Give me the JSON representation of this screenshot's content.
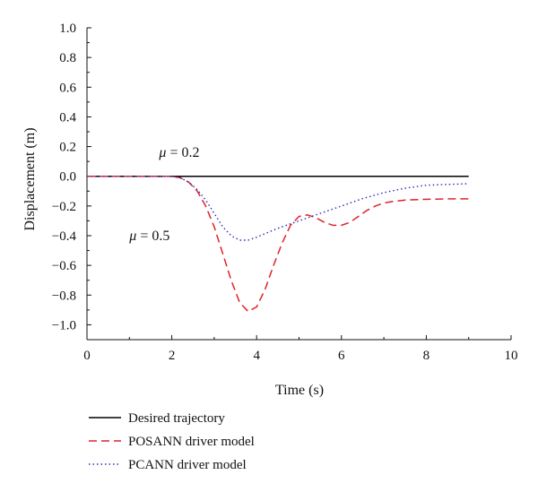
{
  "chart_data": {
    "type": "line",
    "title": "",
    "xlabel": "Time (s)",
    "ylabel": "Displacement (m)",
    "xlim": [
      0,
      10
    ],
    "ylim": [
      -1.1,
      1.0
    ],
    "xticks": [
      "0",
      "2",
      "4",
      "6",
      "8",
      "10"
    ],
    "yticks": [
      "1.0",
      "0.8",
      "0.6",
      "0.4",
      "0.2",
      "0.0",
      "−0.2",
      "−0.4",
      "−0.6",
      "−0.8",
      "−1.0"
    ],
    "grid": false,
    "legend_position": "bottom-left",
    "annotations": [
      {
        "text": "μ = 0.2",
        "x": 1.7,
        "y": 0.16
      },
      {
        "text": "μ = 0.5",
        "x": 1.0,
        "y": -0.4
      }
    ],
    "series": [
      {
        "name": "Desired trajectory",
        "color": "#000000",
        "style": "solid",
        "x": [
          0,
          9
        ],
        "y": [
          0,
          0
        ]
      },
      {
        "name": "POSANN driver model",
        "color": "#e0222a",
        "style": "dashed",
        "x": [
          0,
          2.0,
          2.2,
          2.4,
          2.6,
          2.8,
          3.0,
          3.2,
          3.4,
          3.6,
          3.8,
          4.0,
          4.2,
          4.4,
          4.6,
          4.8,
          5.0,
          5.2,
          5.4,
          5.6,
          5.8,
          6.0,
          6.2,
          6.4,
          6.6,
          6.8,
          7.0,
          7.2,
          7.5,
          8.0,
          8.5,
          9.0
        ],
        "y": [
          0,
          0,
          -0.01,
          -0.04,
          -0.1,
          -0.2,
          -0.34,
          -0.52,
          -0.7,
          -0.85,
          -0.91,
          -0.88,
          -0.76,
          -0.6,
          -0.45,
          -0.33,
          -0.27,
          -0.26,
          -0.28,
          -0.31,
          -0.33,
          -0.33,
          -0.31,
          -0.27,
          -0.23,
          -0.2,
          -0.18,
          -0.17,
          -0.16,
          -0.155,
          -0.152,
          -0.152
        ]
      },
      {
        "name": "PCANN driver model",
        "color": "#2b2fb8",
        "style": "dotted",
        "x": [
          0,
          2.0,
          2.2,
          2.4,
          2.6,
          2.8,
          3.0,
          3.2,
          3.4,
          3.6,
          3.8,
          4.0,
          4.5,
          5.0,
          5.5,
          6.0,
          6.5,
          7.0,
          7.5,
          8.0,
          8.5,
          9.0
        ],
        "y": [
          0,
          0,
          -0.01,
          -0.04,
          -0.09,
          -0.16,
          -0.25,
          -0.34,
          -0.4,
          -0.43,
          -0.43,
          -0.41,
          -0.35,
          -0.3,
          -0.25,
          -0.2,
          -0.15,
          -0.11,
          -0.08,
          -0.06,
          -0.055,
          -0.05
        ]
      }
    ]
  }
}
